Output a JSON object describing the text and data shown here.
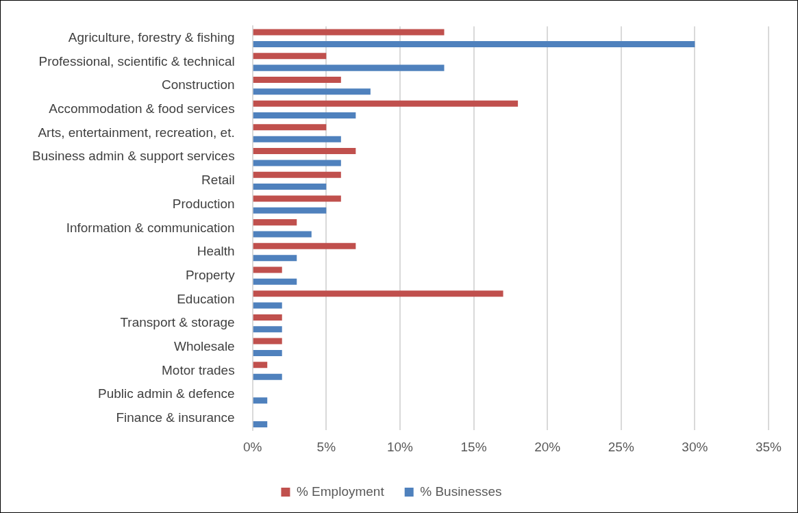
{
  "chart_data": {
    "type": "bar",
    "orientation": "horizontal",
    "categories": [
      "Agriculture, forestry & fishing",
      "Professional, scientific & technical",
      "Construction",
      "Accommodation & food services",
      "Arts, entertainment, recreation, et.",
      "Business admin & support services",
      "Retail",
      "Production",
      "Information & communication",
      "Health",
      "Property",
      "Education",
      "Transport & storage",
      "Wholesale",
      "Motor trades",
      "Public admin & defence",
      "Finance & insurance"
    ],
    "series": [
      {
        "name": "% Employment",
        "color": "#c0504d",
        "values": [
          13,
          5,
          6,
          18,
          5,
          7,
          6,
          6,
          3,
          7,
          2,
          17,
          2,
          2,
          1,
          0,
          0
        ]
      },
      {
        "name": "% Businesses",
        "color": "#4f81bd",
        "values": [
          30,
          13,
          8,
          7,
          6,
          6,
          5,
          5,
          4,
          3,
          3,
          2,
          2,
          2,
          2,
          1,
          1
        ]
      }
    ],
    "xlim": [
      0,
      35
    ],
    "xticks": [
      {
        "value": 0,
        "label": "0%"
      },
      {
        "value": 5,
        "label": "5%"
      },
      {
        "value": 10,
        "label": "10%"
      },
      {
        "value": 15,
        "label": "15%"
      },
      {
        "value": 20,
        "label": "20%"
      },
      {
        "value": 25,
        "label": "25%"
      },
      {
        "value": 30,
        "label": "30%"
      },
      {
        "value": 35,
        "label": "35%"
      }
    ],
    "grid": "x",
    "legend": "bottom"
  }
}
